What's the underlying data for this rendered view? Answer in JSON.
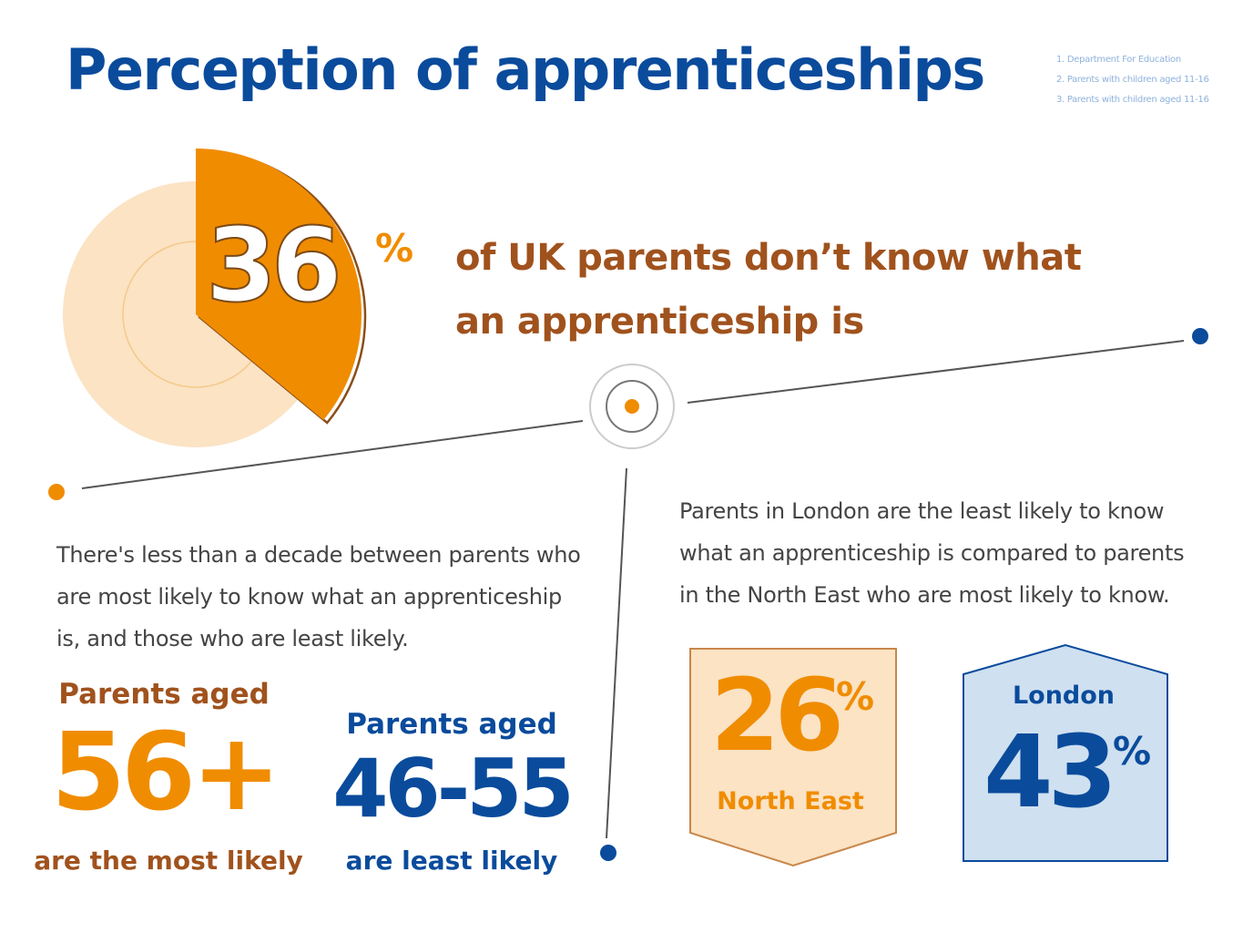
{
  "title": "Perception of apprenticeships",
  "footnotes": [
    "1. Department For Education",
    "2. Parents with children aged 11-16",
    "3. Parents with children aged 11-16"
  ],
  "headline": {
    "value": "36",
    "unit": "%",
    "line1": "of UK parents don’t know what",
    "line2": "an apprenticeship is"
  },
  "age_section": {
    "description_lines": [
      "There's less than a decade between parents who",
      "are most likely to know what an apprenticeship",
      "is, and those who are least likely."
    ],
    "most_likely": {
      "label": "Parents aged",
      "value": "56+",
      "caption": "are the most likely"
    },
    "least_likely": {
      "label": "Parents aged",
      "value": "46-55",
      "caption": "are least likely"
    }
  },
  "region_section": {
    "description_lines": [
      "Parents in London are the least likely to know",
      "what an apprenticeship is compared to parents",
      "in the North East who are most likely to know."
    ],
    "north_east": {
      "value": "26",
      "unit": "%",
      "name": "North East"
    },
    "london": {
      "value": "43",
      "unit": "%",
      "name": "London"
    }
  },
  "colors": {
    "brand_blue": "#0a4b9c",
    "orange": "#f08c00",
    "brown": "#a0521d",
    "light_orange": "#f9e0bd",
    "light_blue": "#cfe0f0"
  },
  "chart_data": {
    "type": "pie",
    "values": [
      36,
      64
    ],
    "unit": "%"
  }
}
